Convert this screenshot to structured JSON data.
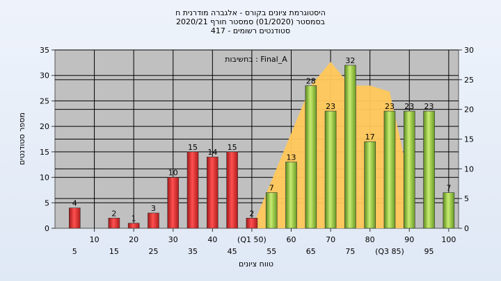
{
  "title_lines": [
    "היסטוגרמת ציונים בקורס - אלגברה מודרנית ח",
    "בסמסטר  (01/2020)  סמסטר חורף  2020/21",
    "סטודנטים רשומים - 417"
  ],
  "annotation": "בחשיבות : Final_A",
  "chart_data": {
    "type": "bar",
    "title": "היסטוגרמת ציונים בקורס - אלגברה מודרנית ח",
    "xlabel": "טווח ציונים",
    "ylabel": "מספר סטודנטים",
    "ylim": [
      0,
      35
    ],
    "y2lim": [
      0,
      30
    ],
    "yticks": [
      0,
      5,
      10,
      15,
      20,
      25,
      30,
      35
    ],
    "y2ticks": [
      0,
      5,
      10,
      15,
      20,
      25,
      30
    ],
    "categories": [
      "5",
      "10",
      "15",
      "20",
      "25",
      "30",
      "35",
      "40",
      "45",
      "50",
      "55",
      "60",
      "65",
      "70",
      "75",
      "80",
      "85",
      "90",
      "95",
      "100"
    ],
    "xtick_labels_upper": [
      "10",
      "20",
      "30",
      "40",
      "(Q1 50)",
      "60",
      "70",
      "80",
      "90",
      "100"
    ],
    "xtick_labels_lower": [
      "5",
      "15",
      "25",
      "35",
      "45",
      "55",
      "65",
      "75",
      "(Q3 85)",
      "95"
    ],
    "series": [
      {
        "color": "#e03030",
        "values": [
          4,
          null,
          2,
          1,
          3,
          10,
          15,
          14,
          15,
          2,
          null,
          null,
          null,
          null,
          null,
          null,
          null,
          null,
          null,
          null
        ]
      },
      {
        "color": "#8cc43c",
        "values": [
          null,
          null,
          null,
          null,
          null,
          null,
          null,
          null,
          null,
          null,
          7,
          13,
          28,
          23,
          32,
          17,
          23,
          23,
          23,
          7
        ]
      }
    ],
    "area": {
      "color": "#ffc85a",
      "x": [
        50,
        55,
        60,
        65,
        70,
        75,
        80,
        85,
        90
      ],
      "values": [
        0,
        8,
        16,
        24,
        28,
        24,
        24,
        23,
        8
      ]
    },
    "grid": true
  }
}
